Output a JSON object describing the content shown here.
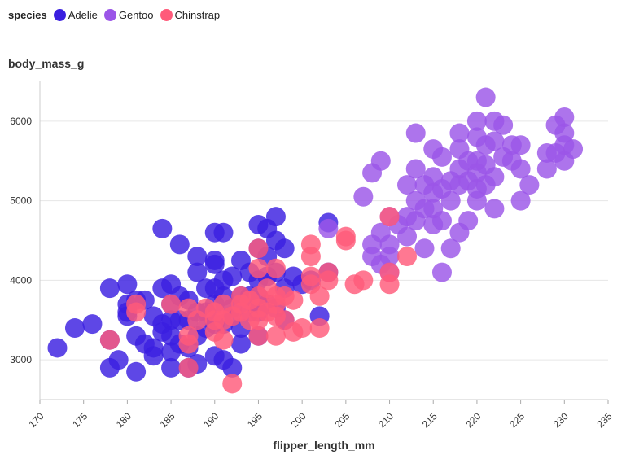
{
  "chart_data": {
    "type": "scatter",
    "xlabel": "flipper_length_mm",
    "ylabel": "body_mass_g",
    "xlim": [
      170,
      235
    ],
    "ylim": [
      2500,
      6500
    ],
    "xticks": [
      "170",
      "175",
      "180",
      "185",
      "190",
      "195",
      "200",
      "205",
      "210",
      "215",
      "220",
      "225",
      "230",
      "235"
    ],
    "yticks": [
      "3000",
      "4000",
      "5000",
      "6000"
    ],
    "grid": true,
    "legend": {
      "title": "species",
      "position": "top-left",
      "items": [
        {
          "label": "Adelie",
          "color": "#3a1fe0"
        },
        {
          "label": "Gentoo",
          "color": "#9b55e8"
        },
        {
          "label": "Chinstrap",
          "color": "#ff5a7a"
        }
      ]
    },
    "series": [
      {
        "name": "Adelie",
        "color": "#3a1fe0",
        "points": [
          [
            172,
            3150
          ],
          [
            174,
            3400
          ],
          [
            176,
            3450
          ],
          [
            178,
            3900
          ],
          [
            178,
            2900
          ],
          [
            178,
            3250
          ],
          [
            179,
            3000
          ],
          [
            180,
            3950
          ],
          [
            180,
            3700
          ],
          [
            180,
            3600
          ],
          [
            180,
            3550
          ],
          [
            181,
            3750
          ],
          [
            181,
            3300
          ],
          [
            181,
            2850
          ],
          [
            182,
            3750
          ],
          [
            182,
            3200
          ],
          [
            183,
            3150
          ],
          [
            183,
            3050
          ],
          [
            183,
            3550
          ],
          [
            184,
            4650
          ],
          [
            184,
            3900
          ],
          [
            184,
            3450
          ],
          [
            184,
            3350
          ],
          [
            185,
            3950
          ],
          [
            185,
            3700
          ],
          [
            185,
            3500
          ],
          [
            185,
            3300
          ],
          [
            185,
            3100
          ],
          [
            185,
            2900
          ],
          [
            186,
            4450
          ],
          [
            186,
            3800
          ],
          [
            186,
            3500
          ],
          [
            186,
            3200
          ],
          [
            187,
            3750
          ],
          [
            187,
            3500
          ],
          [
            187,
            3150
          ],
          [
            187,
            2900
          ],
          [
            188,
            4300
          ],
          [
            188,
            4100
          ],
          [
            188,
            3600
          ],
          [
            188,
            3300
          ],
          [
            188,
            2950
          ],
          [
            189,
            3900
          ],
          [
            189,
            3600
          ],
          [
            189,
            3400
          ],
          [
            190,
            4600
          ],
          [
            190,
            4250
          ],
          [
            190,
            4200
          ],
          [
            190,
            3900
          ],
          [
            190,
            3700
          ],
          [
            190,
            3450
          ],
          [
            190,
            3050
          ],
          [
            191,
            4600
          ],
          [
            191,
            4000
          ],
          [
            191,
            3800
          ],
          [
            191,
            3450
          ],
          [
            191,
            3000
          ],
          [
            192,
            4050
          ],
          [
            192,
            3650
          ],
          [
            192,
            3550
          ],
          [
            192,
            2900
          ],
          [
            193,
            4250
          ],
          [
            193,
            3800
          ],
          [
            193,
            3400
          ],
          [
            193,
            3200
          ],
          [
            194,
            4100
          ],
          [
            194,
            3800
          ],
          [
            194,
            3600
          ],
          [
            195,
            4700
          ],
          [
            195,
            4400
          ],
          [
            195,
            4000
          ],
          [
            195,
            3800
          ],
          [
            195,
            3600
          ],
          [
            195,
            3300
          ],
          [
            196,
            4650
          ],
          [
            196,
            4300
          ],
          [
            196,
            4050
          ],
          [
            196,
            3700
          ],
          [
            197,
            4800
          ],
          [
            197,
            4500
          ],
          [
            197,
            4100
          ],
          [
            197,
            3650
          ],
          [
            198,
            4400
          ],
          [
            198,
            3900
          ],
          [
            198,
            3500
          ],
          [
            199,
            4050
          ],
          [
            200,
            3950
          ],
          [
            201,
            4000
          ],
          [
            202,
            3550
          ],
          [
            203,
            4725
          ],
          [
            203,
            4100
          ]
        ]
      },
      {
        "name": "Gentoo",
        "color": "#9b55e8",
        "points": [
          [
            203,
            4650
          ],
          [
            207,
            5050
          ],
          [
            208,
            4450
          ],
          [
            208,
            4300
          ],
          [
            208,
            5350
          ],
          [
            209,
            5500
          ],
          [
            209,
            4600
          ],
          [
            209,
            4200
          ],
          [
            210,
            4800
          ],
          [
            210,
            4450
          ],
          [
            210,
            4300
          ],
          [
            210,
            4100
          ],
          [
            211,
            4700
          ],
          [
            212,
            5200
          ],
          [
            212,
            4800
          ],
          [
            212,
            4550
          ],
          [
            213,
            5850
          ],
          [
            213,
            5400
          ],
          [
            213,
            5000
          ],
          [
            213,
            4750
          ],
          [
            214,
            5200
          ],
          [
            214,
            4900
          ],
          [
            214,
            4400
          ],
          [
            215,
            5650
          ],
          [
            215,
            5300
          ],
          [
            215,
            5100
          ],
          [
            215,
            4900
          ],
          [
            215,
            4700
          ],
          [
            216,
            5550
          ],
          [
            216,
            5150
          ],
          [
            216,
            4750
          ],
          [
            216,
            4100
          ],
          [
            217,
            5250
          ],
          [
            217,
            5000
          ],
          [
            217,
            4400
          ],
          [
            218,
            5850
          ],
          [
            218,
            5650
          ],
          [
            218,
            5400
          ],
          [
            218,
            5200
          ],
          [
            218,
            4600
          ],
          [
            219,
            5500
          ],
          [
            219,
            5250
          ],
          [
            219,
            4750
          ],
          [
            220,
            6000
          ],
          [
            220,
            5800
          ],
          [
            220,
            5500
          ],
          [
            220,
            5350
          ],
          [
            220,
            5150
          ],
          [
            220,
            5000
          ],
          [
            221,
            6300
          ],
          [
            221,
            5700
          ],
          [
            221,
            5450
          ],
          [
            221,
            5200
          ],
          [
            222,
            6000
          ],
          [
            222,
            5750
          ],
          [
            222,
            5300
          ],
          [
            222,
            4900
          ],
          [
            223,
            5950
          ],
          [
            223,
            5550
          ],
          [
            224,
            5700
          ],
          [
            224,
            5500
          ],
          [
            225,
            5700
          ],
          [
            225,
            5400
          ],
          [
            225,
            5000
          ],
          [
            226,
            5200
          ],
          [
            228,
            5600
          ],
          [
            228,
            5400
          ],
          [
            229,
            5950
          ],
          [
            229,
            5600
          ],
          [
            230,
            6050
          ],
          [
            230,
            5850
          ],
          [
            230,
            5700
          ],
          [
            230,
            5500
          ],
          [
            231,
            5650
          ]
        ]
      },
      {
        "name": "Chinstrap",
        "color": "#ff5a7a",
        "points": [
          [
            178,
            3250
          ],
          [
            181,
            3700
          ],
          [
            181,
            3600
          ],
          [
            185,
            3700
          ],
          [
            187,
            3650
          ],
          [
            187,
            3300
          ],
          [
            187,
            3200
          ],
          [
            187,
            2900
          ],
          [
            188,
            3500
          ],
          [
            189,
            3650
          ],
          [
            190,
            3600
          ],
          [
            190,
            3500
          ],
          [
            190,
            3350
          ],
          [
            191,
            3700
          ],
          [
            191,
            3500
          ],
          [
            191,
            3250
          ],
          [
            192,
            2700
          ],
          [
            192,
            3550
          ],
          [
            193,
            3800
          ],
          [
            193,
            3700
          ],
          [
            193,
            3600
          ],
          [
            194,
            3750
          ],
          [
            194,
            3500
          ],
          [
            195,
            4400
          ],
          [
            195,
            4150
          ],
          [
            195,
            3800
          ],
          [
            195,
            3650
          ],
          [
            195,
            3500
          ],
          [
            195,
            3300
          ],
          [
            196,
            3900
          ],
          [
            196,
            3600
          ],
          [
            197,
            4150
          ],
          [
            197,
            3800
          ],
          [
            197,
            3700
          ],
          [
            197,
            3550
          ],
          [
            197,
            3300
          ],
          [
            198,
            3800
          ],
          [
            198,
            3500
          ],
          [
            199,
            3750
          ],
          [
            199,
            3350
          ],
          [
            200,
            3400
          ],
          [
            201,
            4450
          ],
          [
            201,
            4300
          ],
          [
            201,
            4050
          ],
          [
            201,
            3950
          ],
          [
            202,
            3800
          ],
          [
            202,
            3400
          ],
          [
            203,
            4100
          ],
          [
            203,
            4000
          ],
          [
            205,
            4550
          ],
          [
            205,
            4500
          ],
          [
            206,
            3950
          ],
          [
            207,
            4000
          ],
          [
            210,
            4800
          ],
          [
            210,
            4100
          ],
          [
            210,
            3950
          ],
          [
            212,
            4300
          ]
        ]
      }
    ]
  }
}
